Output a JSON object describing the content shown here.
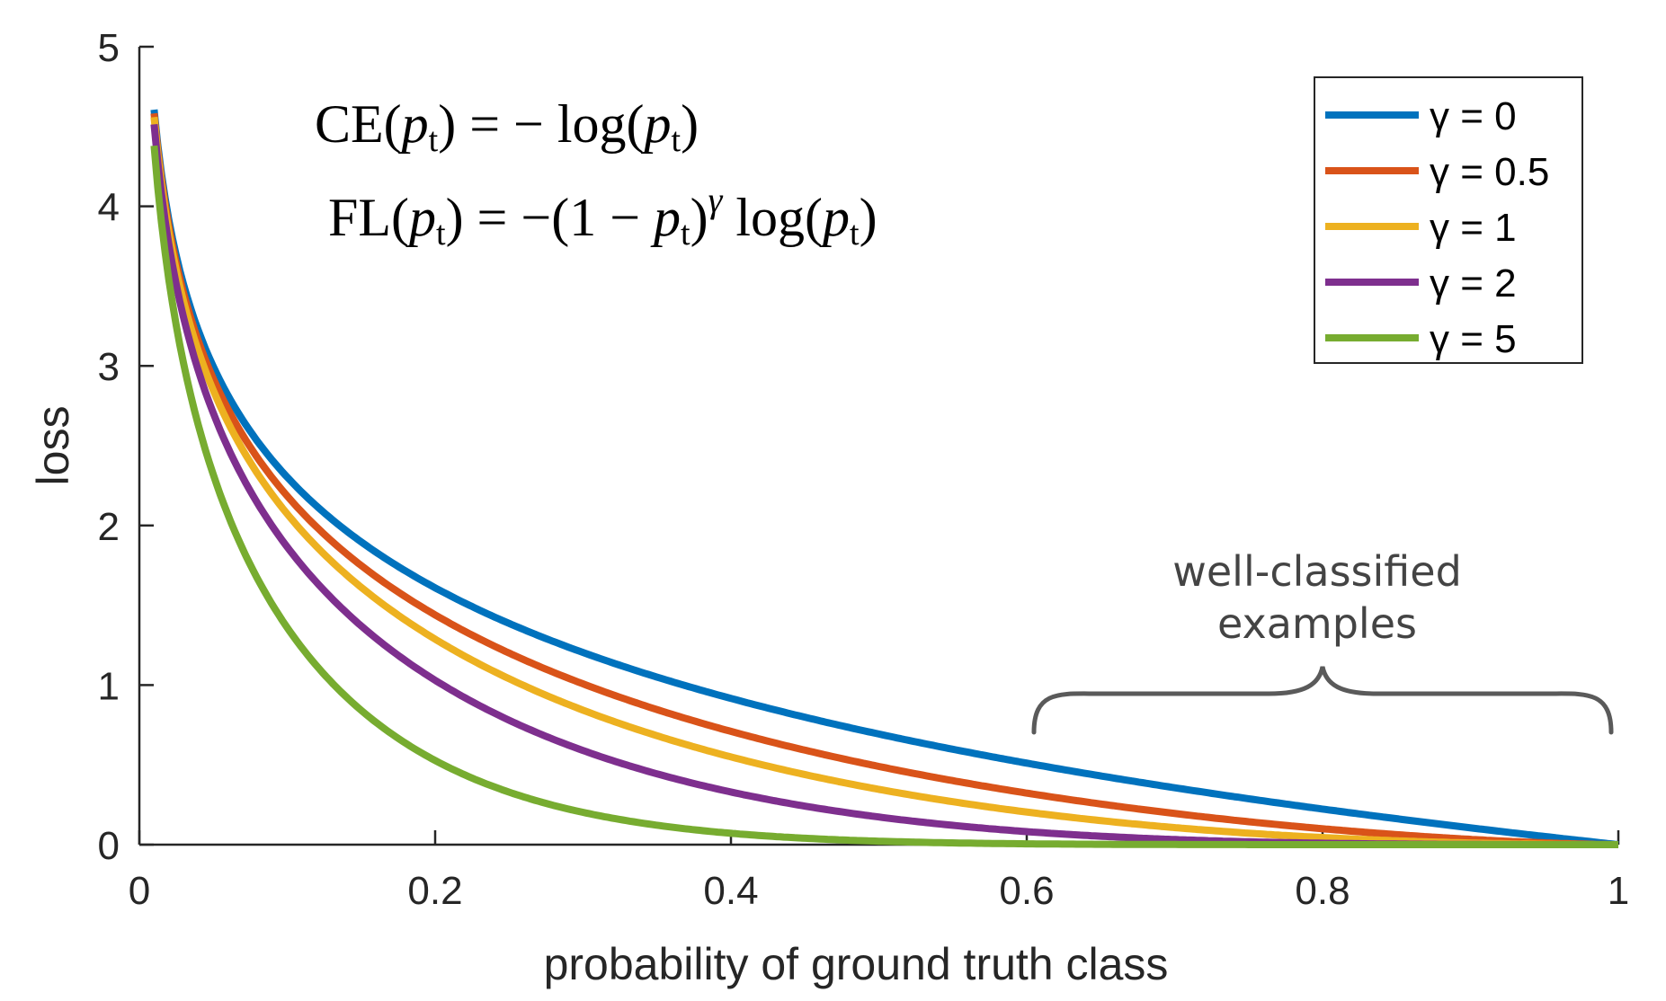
{
  "chart_data": {
    "type": "line",
    "xlabel": "probability of ground truth class",
    "ylabel": "loss",
    "xlim": [
      0,
      1
    ],
    "ylim": [
      0,
      5
    ],
    "xticks": [
      0,
      0.2,
      0.4,
      0.6,
      0.8,
      1
    ],
    "xtick_labels": [
      "0",
      "0.2",
      "0.4",
      "0.6",
      "0.8",
      "1"
    ],
    "yticks": [
      0,
      1,
      2,
      3,
      4,
      5
    ],
    "ytick_labels": [
      "0",
      "1",
      "2",
      "3",
      "4",
      "5"
    ],
    "grid": false,
    "legend_position": "top-right",
    "formula_ce": "CE(pt) = − log(pt)",
    "formula_fl": "FL(pt) = −(1 − pt)γ log(pt)",
    "annotation": {
      "line1": "well-classified",
      "line2": "examples",
      "x_range": [
        0.6,
        1.0
      ]
    },
    "x": [
      0.01,
      0.02,
      0.03,
      0.05,
      0.075,
      0.1,
      0.15,
      0.2,
      0.25,
      0.3,
      0.35,
      0.4,
      0.45,
      0.5,
      0.55,
      0.6,
      0.65,
      0.7,
      0.75,
      0.8,
      0.85,
      0.9,
      0.95,
      1.0
    ],
    "series": [
      {
        "name": "γ = 0",
        "gamma": 0,
        "color": "#0072BD",
        "values": [
          4.61,
          3.91,
          3.51,
          3.0,
          2.59,
          2.3,
          1.9,
          1.61,
          1.39,
          1.2,
          1.05,
          0.92,
          0.8,
          0.69,
          0.6,
          0.51,
          0.43,
          0.36,
          0.29,
          0.22,
          0.16,
          0.11,
          0.05,
          0.0
        ]
      },
      {
        "name": "γ = 0.5",
        "gamma": 0.5,
        "color": "#D95319",
        "values": [
          4.58,
          3.87,
          3.46,
          2.92,
          2.49,
          2.18,
          1.75,
          1.44,
          1.2,
          1.0,
          0.84,
          0.71,
          0.59,
          0.49,
          0.4,
          0.32,
          0.25,
          0.2,
          0.14,
          0.1,
          0.06,
          0.03,
          0.01,
          0.0
        ]
      },
      {
        "name": "γ = 1",
        "gamma": 1,
        "color": "#EDB120",
        "values": [
          4.56,
          3.83,
          3.4,
          2.85,
          2.4,
          2.07,
          1.61,
          1.29,
          1.04,
          0.84,
          0.68,
          0.55,
          0.44,
          0.35,
          0.27,
          0.2,
          0.15,
          0.11,
          0.07,
          0.04,
          0.02,
          0.01,
          0.0,
          0.0
        ]
      },
      {
        "name": "γ = 2",
        "gamma": 2,
        "color": "#7E2F8E",
        "values": [
          4.51,
          3.76,
          3.3,
          2.7,
          2.22,
          1.87,
          1.37,
          1.03,
          0.78,
          0.59,
          0.44,
          0.33,
          0.24,
          0.17,
          0.12,
          0.08,
          0.05,
          0.03,
          0.02,
          0.01,
          0.0,
          0.0,
          0.0,
          0.0
        ]
      },
      {
        "name": "γ = 5",
        "gamma": 5,
        "color": "#77AC30",
        "values": [
          4.38,
          3.53,
          3.0,
          2.32,
          1.71,
          1.36,
          0.84,
          0.53,
          0.33,
          0.2,
          0.12,
          0.07,
          0.04,
          0.02,
          0.01,
          0.01,
          0.0,
          0.0,
          0.0,
          0.0,
          0.0,
          0.0,
          0.0,
          0.0
        ]
      }
    ]
  }
}
